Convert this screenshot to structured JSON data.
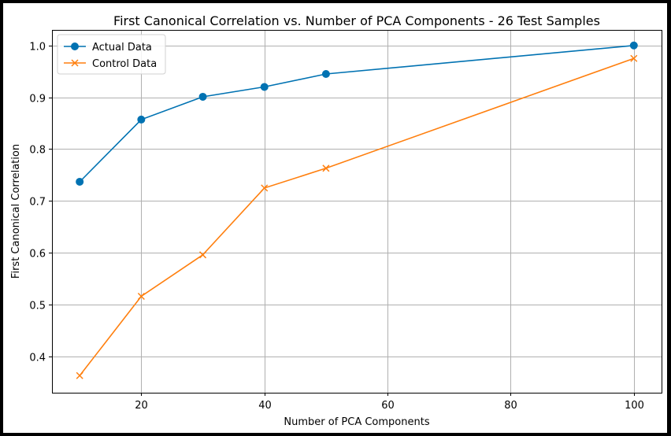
{
  "chart_data": {
    "type": "line",
    "title": "First Canonical Correlation vs. Number of PCA Components - 26  Test Samples",
    "xlabel": "Number of PCA Components",
    "ylabel": "First Canonical Correlation",
    "xlim": [
      5.5,
      104.5
    ],
    "ylim": [
      0.33,
      1.03
    ],
    "xticks": [
      20,
      40,
      60,
      80,
      100
    ],
    "yticks": [
      0.4,
      0.5,
      0.6,
      0.7,
      0.8,
      0.9,
      1.0
    ],
    "xtick_labels": [
      "20",
      "40",
      "60",
      "80",
      "100"
    ],
    "ytick_labels": [
      "0.4",
      "0.5",
      "0.6",
      "0.7",
      "0.8",
      "0.9",
      "1.0"
    ],
    "grid": true,
    "legend_position": "top-left",
    "x": [
      10,
      20,
      30,
      40,
      50,
      100
    ],
    "series": [
      {
        "name": "Actual Data",
        "marker": "circle",
        "color": "#0072b2",
        "values": [
          0.737,
          0.857,
          0.901,
          0.92,
          0.945,
          1.0
        ]
      },
      {
        "name": "Control Data",
        "marker": "x",
        "color": "#ff7f0e",
        "values": [
          0.363,
          0.516,
          0.596,
          0.725,
          0.763,
          0.975
        ]
      }
    ]
  }
}
